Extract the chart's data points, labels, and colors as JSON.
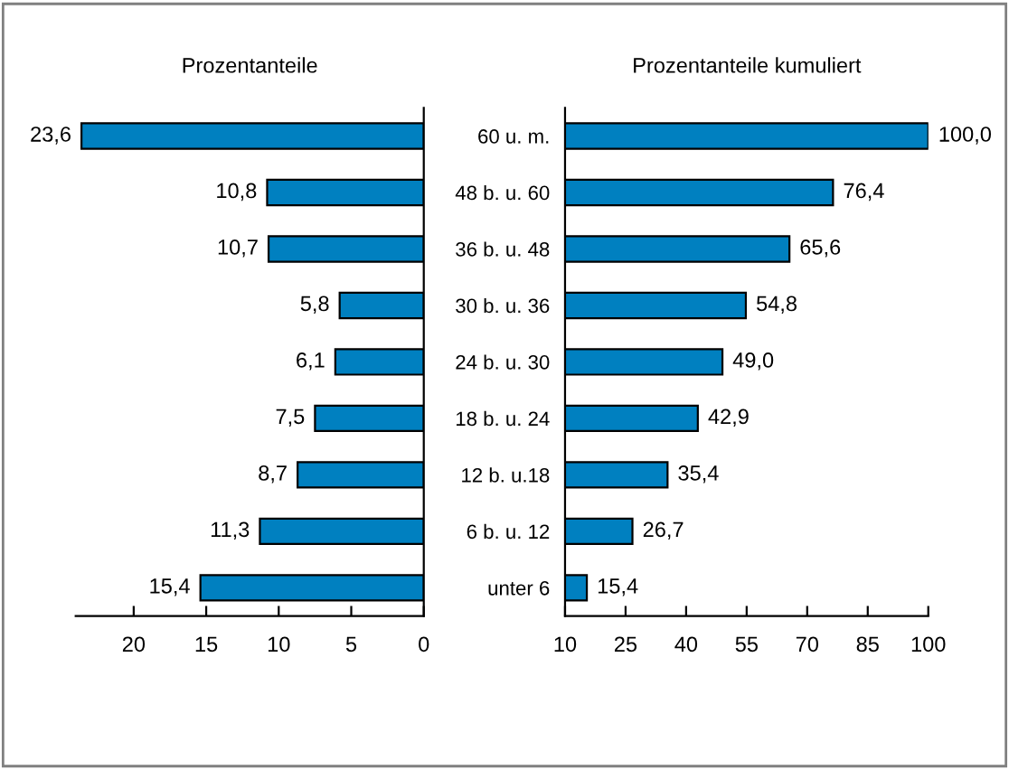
{
  "chart_data": [
    {
      "type": "bar",
      "orientation": "horizontal",
      "title": "Prozentanteile",
      "categories": [
        null,
        null,
        null,
        null,
        null,
        null,
        null,
        null,
        null
      ],
      "values": [
        23.6,
        10.8,
        10.7,
        5.8,
        6.1,
        7.5,
        8.7,
        11.3,
        15.4
      ],
      "value_labels": [
        "23,6",
        "10,8",
        "10,7",
        "5,8",
        "6,1",
        "7,5",
        "8,7",
        "11,3",
        "15,4"
      ],
      "color": "#0080c0",
      "xlim": [
        24,
        0
      ],
      "xticks": [
        20,
        15,
        10,
        5,
        0
      ],
      "grid": false
    },
    {
      "type": "bar",
      "orientation": "horizontal",
      "title": "Prozentanteile kumuliert",
      "categories": [
        "60 u. m.",
        "48 b. u. 60",
        "36 b. u. 48",
        "30 b. u. 36",
        "24 b. u. 30",
        "18 b. u. 24",
        "12 b. u.18",
        "6 b. u. 12",
        "unter 6"
      ],
      "values": [
        100.0,
        76.4,
        65.6,
        54.8,
        49.0,
        42.9,
        35.4,
        26.7,
        15.4
      ],
      "value_labels": [
        "100,0",
        "76,4",
        "65,6",
        "54,8",
        "49,0",
        "42,9",
        "35,4",
        "26,7",
        "15,4"
      ],
      "color": "#0080c0",
      "xlim": [
        10,
        100
      ],
      "xticks": [
        10,
        25,
        40,
        55,
        70,
        85,
        100
      ],
      "grid": false
    }
  ]
}
